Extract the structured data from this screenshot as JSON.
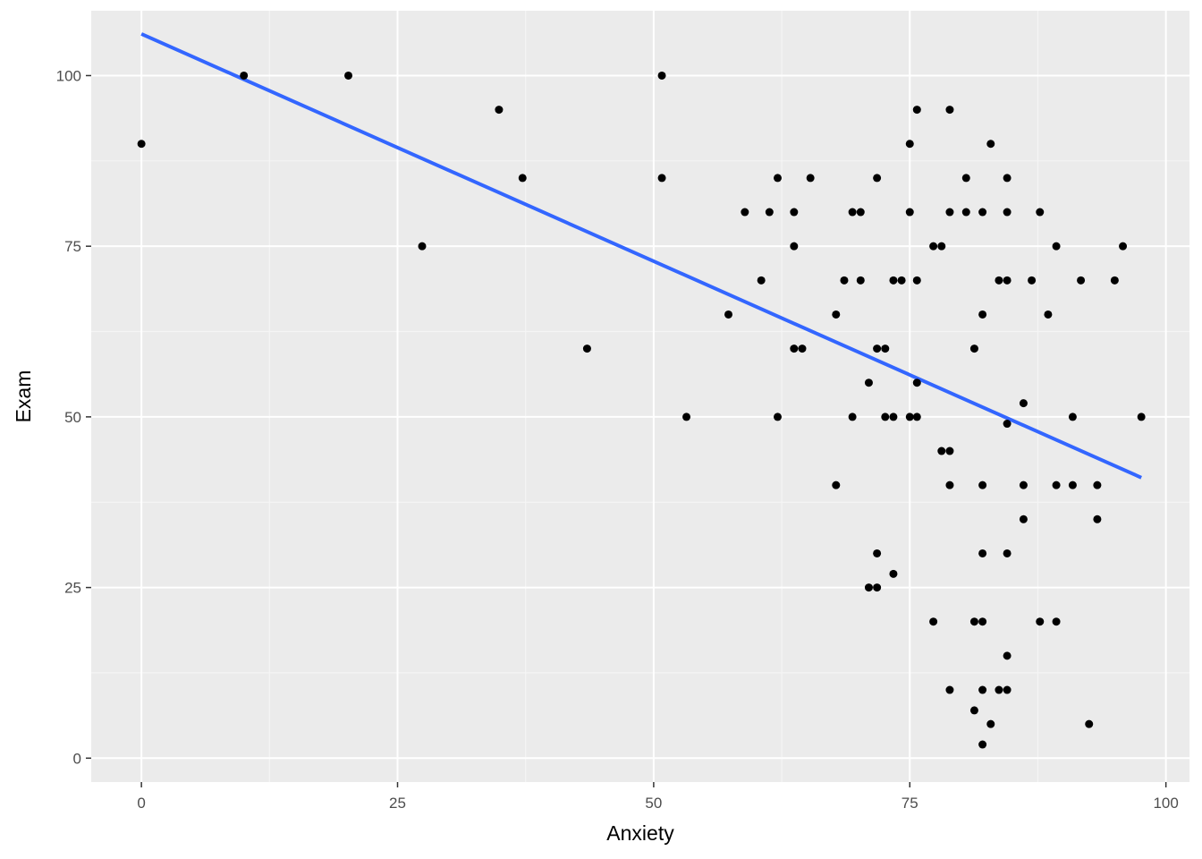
{
  "chart_data": {
    "type": "scatter",
    "title": "",
    "xlabel": "Anxiety",
    "ylabel": "Exam",
    "xlim": [
      -4.9,
      102.3
    ],
    "ylim": [
      -3.5,
      109.5
    ],
    "x_ticks": [
      0,
      25,
      50,
      75,
      100
    ],
    "x_tick_labels": [
      "0",
      "25",
      "50",
      "75",
      "100"
    ],
    "y_ticks": [
      0,
      25,
      50,
      75,
      100
    ],
    "y_tick_labels": [
      "0",
      "25",
      "50",
      "75",
      "100"
    ],
    "grid": true,
    "legend": "none",
    "colors": {
      "panel_background": "#ebebeb",
      "grid_major": "#ffffff",
      "grid_minor": "#f5f5f5",
      "point": "#000000",
      "trend_line": "#3366ff",
      "tick_label": "#4d4d4d",
      "axis_title": "#000000"
    },
    "points": [
      {
        "x": 0,
        "y": 90
      },
      {
        "x": 10,
        "y": 100
      },
      {
        "x": 20.2,
        "y": 100
      },
      {
        "x": 27.4,
        "y": 75
      },
      {
        "x": 34.9,
        "y": 95
      },
      {
        "x": 37.2,
        "y": 85
      },
      {
        "x": 43.5,
        "y": 60
      },
      {
        "x": 50.8,
        "y": 100
      },
      {
        "x": 50.8,
        "y": 85
      },
      {
        "x": 53.2,
        "y": 50
      },
      {
        "x": 57.3,
        "y": 65
      },
      {
        "x": 58.9,
        "y": 80
      },
      {
        "x": 60.5,
        "y": 70
      },
      {
        "x": 61.3,
        "y": 80
      },
      {
        "x": 62.1,
        "y": 85
      },
      {
        "x": 62.1,
        "y": 50
      },
      {
        "x": 63.7,
        "y": 80
      },
      {
        "x": 63.7,
        "y": 75
      },
      {
        "x": 63.7,
        "y": 60
      },
      {
        "x": 64.5,
        "y": 60
      },
      {
        "x": 65.3,
        "y": 85
      },
      {
        "x": 67.8,
        "y": 65
      },
      {
        "x": 67.8,
        "y": 40
      },
      {
        "x": 68.6,
        "y": 70
      },
      {
        "x": 69.4,
        "y": 80
      },
      {
        "x": 69.4,
        "y": 50
      },
      {
        "x": 70.2,
        "y": 80
      },
      {
        "x": 70.2,
        "y": 70
      },
      {
        "x": 71,
        "y": 55
      },
      {
        "x": 71,
        "y": 25
      },
      {
        "x": 71.8,
        "y": 85
      },
      {
        "x": 71.8,
        "y": 60
      },
      {
        "x": 71.8,
        "y": 30
      },
      {
        "x": 71.8,
        "y": 25
      },
      {
        "x": 72.6,
        "y": 60
      },
      {
        "x": 72.6,
        "y": 50
      },
      {
        "x": 73.4,
        "y": 70
      },
      {
        "x": 73.4,
        "y": 50
      },
      {
        "x": 73.4,
        "y": 27
      },
      {
        "x": 74.2,
        "y": 70
      },
      {
        "x": 75,
        "y": 90
      },
      {
        "x": 75,
        "y": 80
      },
      {
        "x": 75,
        "y": 50
      },
      {
        "x": 75.7,
        "y": 95
      },
      {
        "x": 75.7,
        "y": 70
      },
      {
        "x": 75.7,
        "y": 55
      },
      {
        "x": 75.7,
        "y": 50
      },
      {
        "x": 77.3,
        "y": 75
      },
      {
        "x": 77.3,
        "y": 20
      },
      {
        "x": 78.1,
        "y": 75
      },
      {
        "x": 78.1,
        "y": 45
      },
      {
        "x": 78.9,
        "y": 95
      },
      {
        "x": 78.9,
        "y": 80
      },
      {
        "x": 78.9,
        "y": 45
      },
      {
        "x": 78.9,
        "y": 40
      },
      {
        "x": 78.9,
        "y": 10
      },
      {
        "x": 80.5,
        "y": 85
      },
      {
        "x": 80.5,
        "y": 80
      },
      {
        "x": 81.3,
        "y": 60
      },
      {
        "x": 81.3,
        "y": 20
      },
      {
        "x": 81.3,
        "y": 7
      },
      {
        "x": 82.1,
        "y": 80
      },
      {
        "x": 82.1,
        "y": 65
      },
      {
        "x": 82.1,
        "y": 40
      },
      {
        "x": 82.1,
        "y": 30
      },
      {
        "x": 82.1,
        "y": 20
      },
      {
        "x": 82.1,
        "y": 10
      },
      {
        "x": 82.1,
        "y": 2
      },
      {
        "x": 82.9,
        "y": 90
      },
      {
        "x": 82.9,
        "y": 5
      },
      {
        "x": 83.7,
        "y": 70
      },
      {
        "x": 83.7,
        "y": 10
      },
      {
        "x": 84.5,
        "y": 85
      },
      {
        "x": 84.5,
        "y": 80
      },
      {
        "x": 84.5,
        "y": 70
      },
      {
        "x": 84.5,
        "y": 49
      },
      {
        "x": 84.5,
        "y": 30
      },
      {
        "x": 84.5,
        "y": 15
      },
      {
        "x": 84.5,
        "y": 10
      },
      {
        "x": 86.1,
        "y": 52
      },
      {
        "x": 86.1,
        "y": 40
      },
      {
        "x": 86.1,
        "y": 35
      },
      {
        "x": 86.9,
        "y": 70
      },
      {
        "x": 87.7,
        "y": 80
      },
      {
        "x": 87.7,
        "y": 20
      },
      {
        "x": 88.5,
        "y": 65
      },
      {
        "x": 89.3,
        "y": 75
      },
      {
        "x": 89.3,
        "y": 40
      },
      {
        "x": 89.3,
        "y": 20
      },
      {
        "x": 90.9,
        "y": 50
      },
      {
        "x": 90.9,
        "y": 40
      },
      {
        "x": 91.7,
        "y": 70
      },
      {
        "x": 92.5,
        "y": 5
      },
      {
        "x": 93.3,
        "y": 40
      },
      {
        "x": 93.3,
        "y": 35
      },
      {
        "x": 95,
        "y": 70
      },
      {
        "x": 95.8,
        "y": 75
      },
      {
        "x": 97.6,
        "y": 50
      }
    ],
    "trend_line": {
      "method": "linear",
      "x": [
        0,
        97.6
      ],
      "y": [
        106.1,
        41.1
      ]
    }
  }
}
